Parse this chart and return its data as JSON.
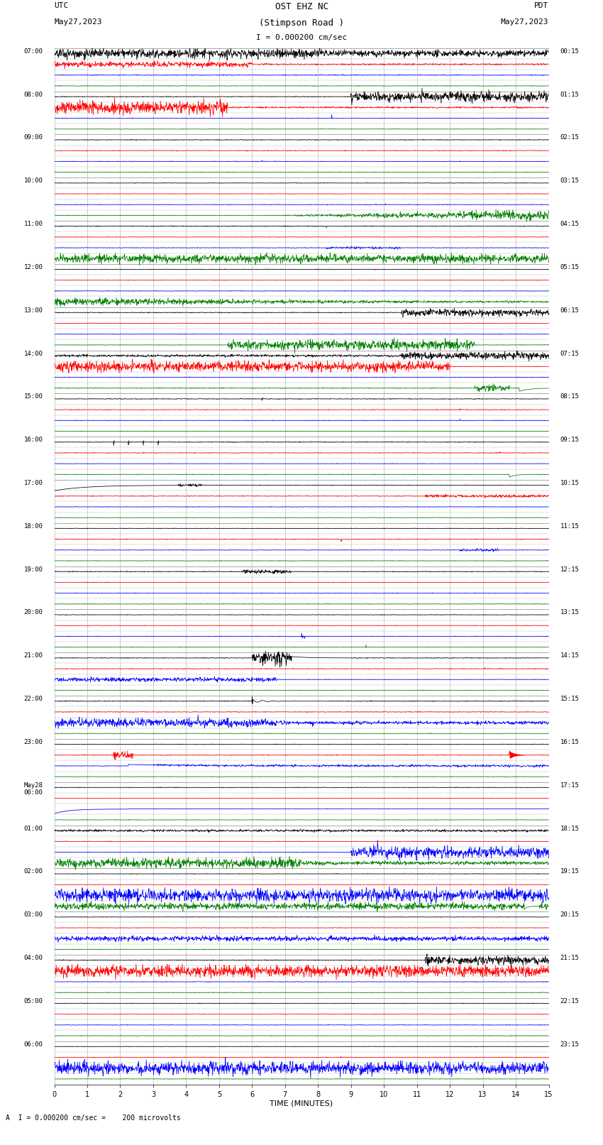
{
  "title_line1": "OST EHZ NC",
  "title_line2": "(Stimpson Road )",
  "title_line3": "I = 0.000200 cm/sec",
  "label_utc": "UTC",
  "label_pdt": "PDT",
  "label_date_left": "May27,2023",
  "label_date_right": "May27,2023",
  "label_bottom": "A  I = 0.000200 cm/sec =    200 microvolts",
  "xlabel": "TIME (MINUTES)",
  "bg_color": "#ffffff",
  "figsize": [
    8.5,
    16.13
  ],
  "dpi": 100,
  "n_groups": 24,
  "traces_per_group": 4,
  "trace_colors": [
    "black",
    "red",
    "blue",
    "green"
  ],
  "utc_row_labels": [
    "07:00",
    "08:00",
    "09:00",
    "10:00",
    "11:00",
    "12:00",
    "13:00",
    "14:00",
    "15:00",
    "16:00",
    "17:00",
    "18:00",
    "19:00",
    "20:00",
    "21:00",
    "22:00",
    "23:00",
    "May28\n00:00",
    "01:00",
    "02:00",
    "03:00",
    "04:00",
    "05:00",
    "06:00"
  ],
  "pdt_row_labels": [
    "00:15",
    "01:15",
    "02:15",
    "03:15",
    "04:15",
    "05:15",
    "06:15",
    "07:15",
    "08:15",
    "09:15",
    "10:15",
    "11:15",
    "12:15",
    "13:15",
    "14:15",
    "15:15",
    "16:15",
    "17:15",
    "18:15",
    "19:15",
    "20:15",
    "21:15",
    "22:15",
    "23:15"
  ],
  "xticks": [
    0,
    1,
    2,
    3,
    4,
    5,
    6,
    7,
    8,
    9,
    10,
    11,
    12,
    13,
    14,
    15
  ]
}
